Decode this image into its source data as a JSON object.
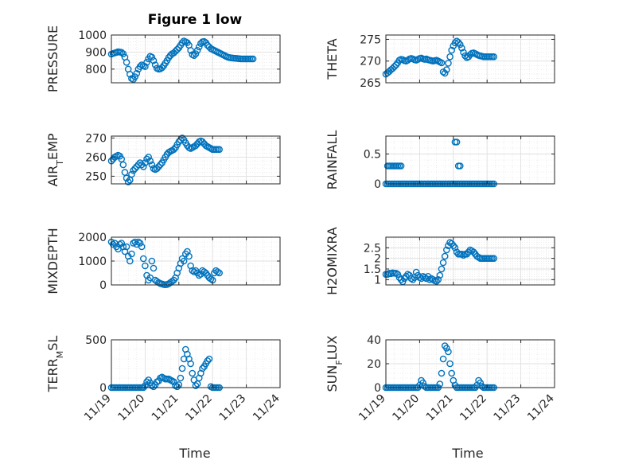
{
  "figure": {
    "title": "Figure 1 low"
  },
  "chart_data": [
    {
      "id": "pressure",
      "type": "scatter",
      "ylabel": "PRESSURE",
      "ylim": [
        720,
        1000
      ],
      "yticks": [
        800,
        900,
        1000
      ],
      "ytick_labels": [
        "800",
        "900",
        "1000"
      ],
      "grid": true,
      "x": [
        0,
        0.05,
        0.1,
        0.15,
        0.2,
        0.25,
        0.3,
        0.35,
        0.4,
        0.45,
        0.5,
        0.55,
        0.6,
        0.65,
        0.7,
        0.75,
        0.8,
        0.85,
        0.9,
        0.95,
        1.0,
        1.05,
        1.1,
        1.15,
        1.2,
        1.25,
        1.3,
        1.35,
        1.4,
        1.45,
        1.5,
        1.55,
        1.6,
        1.65,
        1.7,
        1.75,
        1.8,
        1.85,
        1.9,
        1.95,
        2.0,
        2.05,
        2.1,
        2.15,
        2.2,
        2.25,
        2.3,
        2.35,
        2.4,
        2.45,
        2.5,
        2.55,
        2.6,
        2.65,
        2.7,
        2.75,
        2.8,
        2.85,
        2.9,
        2.95,
        3.0,
        3.05,
        3.1,
        3.15,
        3.2,
        3.25,
        3.3,
        3.35,
        3.4,
        3.45,
        3.5,
        3.55,
        3.6,
        3.65,
        3.7,
        3.75,
        3.8,
        3.85,
        3.9,
        3.95,
        4.0,
        4.05,
        4.1,
        4.15,
        4.2
      ],
      "y": [
        888,
        892,
        895,
        898,
        902,
        900,
        898,
        890,
        870,
        840,
        800,
        770,
        745,
        740,
        755,
        775,
        800,
        815,
        825,
        820,
        815,
        840,
        860,
        875,
        870,
        850,
        825,
        805,
        800,
        802,
        808,
        820,
        835,
        850,
        868,
        880,
        890,
        895,
        905,
        915,
        925,
        940,
        955,
        965,
        960,
        955,
        940,
        910,
        885,
        880,
        890,
        910,
        930,
        950,
        960,
        962,
        955,
        940,
        930,
        920,
        915,
        910,
        905,
        900,
        895,
        890,
        885,
        880,
        875,
        870,
        868,
        866,
        865,
        864,
        863,
        862,
        861,
        860,
        860,
        860,
        860,
        860,
        860,
        860,
        860
      ]
    },
    {
      "id": "theta",
      "type": "scatter",
      "ylabel": "THETA",
      "ylim": [
        265,
        276
      ],
      "yticks": [
        265,
        270,
        275
      ],
      "ytick_labels": [
        "265",
        "270",
        "275"
      ],
      "grid": true,
      "x": [
        0,
        0.05,
        0.1,
        0.15,
        0.2,
        0.25,
        0.3,
        0.35,
        0.4,
        0.45,
        0.5,
        0.55,
        0.6,
        0.65,
        0.7,
        0.75,
        0.8,
        0.85,
        0.9,
        0.95,
        1.0,
        1.05,
        1.1,
        1.15,
        1.2,
        1.25,
        1.3,
        1.35,
        1.4,
        1.45,
        1.5,
        1.55,
        1.6,
        1.65,
        1.7,
        1.75,
        1.8,
        1.85,
        1.9,
        1.95,
        2.0,
        2.05,
        2.1,
        2.15,
        2.2,
        2.25,
        2.3,
        2.35,
        2.4,
        2.45,
        2.5,
        2.55,
        2.6,
        2.65,
        2.7,
        2.75,
        2.8,
        2.85,
        2.9,
        2.95,
        3.0,
        3.05,
        3.1,
        3.15,
        3.2
      ],
      "y": [
        267,
        267.3,
        267.6,
        268,
        268.3,
        268.7,
        269.1,
        269.6,
        270.2,
        270.4,
        270.3,
        270.1,
        270,
        270.2,
        270.5,
        270.6,
        270.5,
        270.3,
        270.2,
        270.4,
        270.6,
        270.7,
        270.5,
        270.4,
        270.5,
        270.3,
        270.2,
        270.1,
        270,
        270.1,
        270.2,
        270,
        269.8,
        269.6,
        267.5,
        267.2,
        268,
        269.5,
        271,
        272.5,
        273.5,
        274.2,
        274.6,
        274.3,
        273.8,
        273,
        272,
        271.2,
        270.8,
        271,
        271.5,
        271.8,
        271.9,
        271.7,
        271.5,
        271.3,
        271.2,
        271.1,
        271.0,
        271.0,
        271.0,
        271.0,
        271.0,
        271.0,
        271.0
      ]
    },
    {
      "id": "air_temp",
      "type": "scatter",
      "ylabel": "AIR_TEMP",
      "ylim": [
        246,
        271
      ],
      "yticks": [
        250,
        260,
        270
      ],
      "ytick_labels": [
        "250",
        "260",
        "270"
      ],
      "grid": true,
      "x": [
        0,
        0.05,
        0.1,
        0.15,
        0.2,
        0.25,
        0.3,
        0.35,
        0.4,
        0.45,
        0.5,
        0.55,
        0.6,
        0.65,
        0.7,
        0.75,
        0.8,
        0.85,
        0.9,
        0.95,
        1.0,
        1.05,
        1.1,
        1.15,
        1.2,
        1.25,
        1.3,
        1.35,
        1.4,
        1.45,
        1.5,
        1.55,
        1.6,
        1.65,
        1.7,
        1.75,
        1.8,
        1.85,
        1.9,
        1.95,
        2.0,
        2.05,
        2.1,
        2.15,
        2.2,
        2.25,
        2.3,
        2.35,
        2.4,
        2.45,
        2.5,
        2.55,
        2.6,
        2.65,
        2.7,
        2.75,
        2.8,
        2.85,
        2.9,
        2.95,
        3.0,
        3.05,
        3.1,
        3.15,
        3.2
      ],
      "y": [
        258,
        259,
        260,
        260.5,
        261,
        260.5,
        259,
        256,
        252,
        249,
        247,
        248,
        251,
        253,
        254,
        255,
        256,
        257,
        256,
        255,
        257,
        259,
        260,
        258,
        256,
        254,
        253.5,
        254,
        255,
        256,
        257,
        258.5,
        260,
        261.5,
        262.5,
        263,
        263.5,
        264,
        265,
        266.5,
        268,
        269,
        270,
        269,
        267.5,
        266,
        265,
        264.5,
        265,
        265.5,
        266,
        267,
        268,
        268.5,
        268,
        267,
        266,
        265.5,
        265,
        264.5,
        264,
        264,
        264,
        264,
        264
      ]
    },
    {
      "id": "rainfall",
      "type": "scatter",
      "ylabel": "RAINFALL",
      "ylim": [
        0,
        0.8
      ],
      "yticks": [
        0,
        0.5
      ],
      "ytick_labels": [
        "0",
        "0.5"
      ],
      "grid": true,
      "x": [
        0,
        0.05,
        0.1,
        0.15,
        0.2,
        0.25,
        0.3,
        0.35,
        0.4,
        0.45,
        0.5,
        0.55,
        0.6,
        0.65,
        0.7,
        0.75,
        0.8,
        0.85,
        0.9,
        0.95,
        1.0,
        1.05,
        1.1,
        1.15,
        1.2,
        1.25,
        1.3,
        1.35,
        1.4,
        1.45,
        1.5,
        1.55,
        1.6,
        1.65,
        1.7,
        1.75,
        1.8,
        1.85,
        1.9,
        1.95,
        2.0,
        2.05,
        2.1,
        2.15,
        2.2,
        2.25,
        2.3,
        2.35,
        2.4,
        2.45,
        2.5,
        2.55,
        2.6,
        2.65,
        2.7,
        2.75,
        2.8,
        2.85,
        2.9,
        2.95,
        3.0,
        3.05,
        3.1,
        3.15,
        3.2,
        0.05,
        0.1,
        0.15,
        0.2,
        0.25,
        0.3,
        0.35,
        0.4,
        0.45,
        2.05,
        2.1,
        2.15,
        2.2
      ],
      "y": [
        0,
        0,
        0,
        0,
        0,
        0,
        0,
        0,
        0,
        0,
        0,
        0,
        0,
        0,
        0,
        0,
        0,
        0,
        0,
        0,
        0,
        0,
        0,
        0,
        0,
        0,
        0,
        0,
        0,
        0,
        0,
        0,
        0,
        0,
        0,
        0,
        0,
        0,
        0,
        0,
        0,
        0,
        0,
        0,
        0,
        0,
        0,
        0,
        0,
        0,
        0,
        0,
        0,
        0,
        0,
        0,
        0,
        0,
        0,
        0,
        0,
        0,
        0,
        0,
        0,
        0.3,
        0.3,
        0.3,
        0.3,
        0.3,
        0.3,
        0.3,
        0.3,
        0.3,
        0.7,
        0.7,
        0.3,
        0.3
      ]
    },
    {
      "id": "mixdepth",
      "type": "scatter",
      "ylabel": "MIXDEPTH",
      "ylim": [
        0,
        2000
      ],
      "yticks": [
        0,
        1000,
        2000
      ],
      "ytick_labels": [
        "0",
        "1000",
        "2000"
      ],
      "grid": true,
      "x": [
        0,
        0.05,
        0.1,
        0.15,
        0.2,
        0.25,
        0.3,
        0.35,
        0.4,
        0.45,
        0.5,
        0.55,
        0.6,
        0.65,
        0.7,
        0.75,
        0.8,
        0.85,
        0.9,
        0.95,
        1.0,
        1.05,
        1.1,
        1.15,
        1.2,
        1.25,
        1.3,
        1.35,
        1.4,
        1.45,
        1.5,
        1.55,
        1.6,
        1.65,
        1.7,
        1.75,
        1.8,
        1.85,
        1.9,
        1.95,
        2.0,
        2.05,
        2.1,
        2.15,
        2.2,
        2.25,
        2.3,
        2.35,
        2.4,
        2.45,
        2.5,
        2.55,
        2.6,
        2.65,
        2.7,
        2.75,
        2.8,
        2.85,
        2.9,
        2.95,
        3.0,
        3.05,
        3.1,
        3.15,
        3.2
      ],
      "y": [
        1800,
        1700,
        1750,
        1600,
        1500,
        1700,
        1750,
        1600,
        1400,
        1600,
        1200,
        1000,
        1300,
        1750,
        1800,
        1700,
        1800,
        1750,
        1600,
        1100,
        800,
        400,
        200,
        300,
        1000,
        700,
        200,
        150,
        100,
        60,
        40,
        20,
        10,
        20,
        50,
        100,
        150,
        200,
        300,
        500,
        700,
        900,
        1100,
        1000,
        1300,
        1400,
        1200,
        800,
        600,
        550,
        600,
        500,
        400,
        450,
        600,
        550,
        500,
        400,
        300,
        250,
        200,
        500,
        600,
        550,
        500
      ]
    },
    {
      "id": "h2omixra",
      "type": "scatter",
      "ylabel": "H2OMIXRA",
      "ylim": [
        0.75,
        3
      ],
      "yticks": [
        1,
        1.5,
        2,
        2.5
      ],
      "ytick_labels": [
        "1",
        "1.5",
        "2",
        "2.5"
      ],
      "grid": true,
      "x": [
        0,
        0.05,
        0.1,
        0.15,
        0.2,
        0.25,
        0.3,
        0.35,
        0.4,
        0.45,
        0.5,
        0.55,
        0.6,
        0.65,
        0.7,
        0.75,
        0.8,
        0.85,
        0.9,
        0.95,
        1.0,
        1.05,
        1.1,
        1.15,
        1.2,
        1.25,
        1.3,
        1.35,
        1.4,
        1.45,
        1.5,
        1.55,
        1.6,
        1.65,
        1.7,
        1.75,
        1.8,
        1.85,
        1.9,
        1.95,
        2.0,
        2.05,
        2.1,
        2.15,
        2.2,
        2.25,
        2.3,
        2.35,
        2.4,
        2.45,
        2.5,
        2.55,
        2.6,
        2.65,
        2.7,
        2.75,
        2.8,
        2.85,
        2.9,
        2.95,
        3.0,
        3.05,
        3.1,
        3.15,
        3.2
      ],
      "y": [
        1.25,
        1.25,
        1.3,
        1.28,
        1.32,
        1.3,
        1.3,
        1.25,
        1.1,
        1.0,
        0.9,
        1.05,
        1.15,
        1.25,
        1.2,
        1.05,
        1.0,
        1.1,
        1.35,
        1.2,
        1.1,
        1.05,
        1.15,
        1.1,
        1.05,
        1.15,
        1.0,
        1.05,
        1.0,
        0.95,
        0.92,
        1.0,
        1.2,
        1.5,
        1.8,
        2.1,
        2.4,
        2.6,
        2.75,
        2.7,
        2.6,
        2.5,
        2.3,
        2.2,
        2.2,
        2.2,
        2.15,
        2.2,
        2.2,
        2.3,
        2.4,
        2.35,
        2.3,
        2.2,
        2.1,
        2.05,
        2.0,
        2.0,
        2.0,
        2.0,
        2.0,
        2.0,
        2.0,
        2.0,
        2.0
      ]
    },
    {
      "id": "terr_msl",
      "type": "scatter",
      "ylabel": "TERR_MSL",
      "ylim": [
        0,
        500
      ],
      "yticks": [
        0,
        500
      ],
      "ytick_labels": [
        "0",
        "500"
      ],
      "grid": true,
      "x": [
        0,
        0.05,
        0.1,
        0.15,
        0.2,
        0.25,
        0.3,
        0.35,
        0.4,
        0.45,
        0.5,
        0.55,
        0.6,
        0.65,
        0.7,
        0.75,
        0.8,
        0.85,
        0.9,
        0.95,
        1.0,
        1.05,
        1.1,
        1.15,
        1.2,
        1.25,
        1.3,
        1.35,
        1.4,
        1.45,
        1.5,
        1.55,
        1.6,
        1.65,
        1.7,
        1.75,
        1.8,
        1.85,
        1.9,
        1.95,
        2.0,
        2.05,
        2.1,
        2.15,
        2.2,
        2.25,
        2.3,
        2.35,
        2.4,
        2.45,
        2.5,
        2.55,
        2.6,
        2.65,
        2.7,
        2.75,
        2.8,
        2.85,
        2.9,
        2.95,
        3.0,
        3.05,
        3.1,
        3.15,
        3.2
      ],
      "y": [
        0,
        0,
        0,
        0,
        0,
        0,
        0,
        0,
        0,
        0,
        0,
        0,
        0,
        0,
        0,
        0,
        0,
        0,
        0,
        0,
        20,
        60,
        80,
        50,
        20,
        10,
        30,
        60,
        70,
        100,
        110,
        100,
        90,
        90,
        90,
        80,
        70,
        60,
        20,
        10,
        30,
        100,
        200,
        300,
        400,
        350,
        300,
        250,
        150,
        80,
        20,
        40,
        100,
        150,
        200,
        220,
        250,
        280,
        300,
        10,
        0,
        0,
        0,
        0,
        0
      ]
    },
    {
      "id": "sun_flux",
      "type": "scatter",
      "ylabel": "SUN_FLUX",
      "ylim": [
        0,
        40
      ],
      "yticks": [
        0,
        20,
        40
      ],
      "ytick_labels": [
        "0",
        "20",
        "40"
      ],
      "grid": true,
      "x": [
        0,
        0.05,
        0.1,
        0.15,
        0.2,
        0.25,
        0.3,
        0.35,
        0.4,
        0.45,
        0.5,
        0.55,
        0.6,
        0.65,
        0.7,
        0.75,
        0.8,
        0.85,
        0.9,
        0.95,
        1.0,
        1.05,
        1.1,
        1.15,
        1.2,
        1.25,
        1.3,
        1.35,
        1.4,
        1.45,
        1.5,
        1.55,
        1.6,
        1.65,
        1.7,
        1.75,
        1.8,
        1.85,
        1.9,
        1.95,
        2.0,
        2.05,
        2.1,
        2.15,
        2.2,
        2.25,
        2.3,
        2.35,
        2.4,
        2.45,
        2.5,
        2.55,
        2.6,
        2.65,
        2.7,
        2.75,
        2.8,
        2.85,
        2.9,
        2.95,
        3.0,
        3.05,
        3.1,
        3.15,
        3.2
      ],
      "y": [
        0,
        0,
        0,
        0,
        0,
        0,
        0,
        0,
        0,
        0,
        0,
        0,
        0,
        0,
        0,
        0,
        0,
        0,
        0,
        0,
        2,
        6,
        4,
        1,
        0,
        0,
        0,
        0,
        0,
        0,
        0,
        0,
        3,
        12,
        24,
        35,
        33,
        30,
        20,
        12,
        6,
        2,
        0,
        0,
        0,
        0,
        0,
        0,
        0,
        0,
        0,
        0,
        0,
        0,
        2,
        6,
        4,
        1,
        0,
        0,
        0,
        0,
        0,
        0,
        0
      ]
    }
  ],
  "x_axis": {
    "label": "Time",
    "range": [
      0,
      5
    ],
    "ticks": [
      0,
      1,
      2,
      3,
      4,
      5
    ],
    "tick_labels": [
      "11/19",
      "11/20",
      "11/21",
      "11/22",
      "11/23",
      "11/24"
    ]
  },
  "colors": {
    "marker": "#0072BD",
    "axis": "#262626",
    "grid": "#dfdfdf"
  }
}
